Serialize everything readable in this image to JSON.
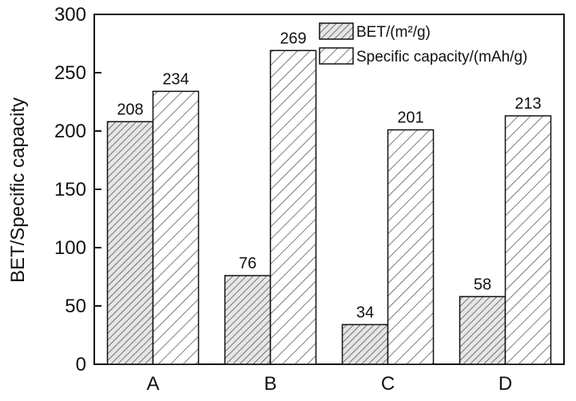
{
  "chart_data": {
    "type": "bar",
    "categories": [
      "A",
      "B",
      "C",
      "D"
    ],
    "series": [
      {
        "name": "BET/(m²/g)",
        "values": [
          208,
          76,
          34,
          58
        ],
        "pattern": "dense-hatch"
      },
      {
        "name": "Specific capacity/(mAh/g)",
        "values": [
          234,
          269,
          201,
          213
        ],
        "pattern": "sparse-hatch"
      }
    ],
    "title": "",
    "xlabel": "",
    "ylabel": "BET/Specific capacity",
    "ylim": [
      0,
      300
    ],
    "yticks": [
      0,
      50,
      100,
      150,
      200,
      250,
      300
    ],
    "grid": false,
    "legend_position": "top-right",
    "colors": {
      "bar_fill": "#d9d9d9",
      "hatch": "#555555",
      "axis": "#111111"
    }
  }
}
